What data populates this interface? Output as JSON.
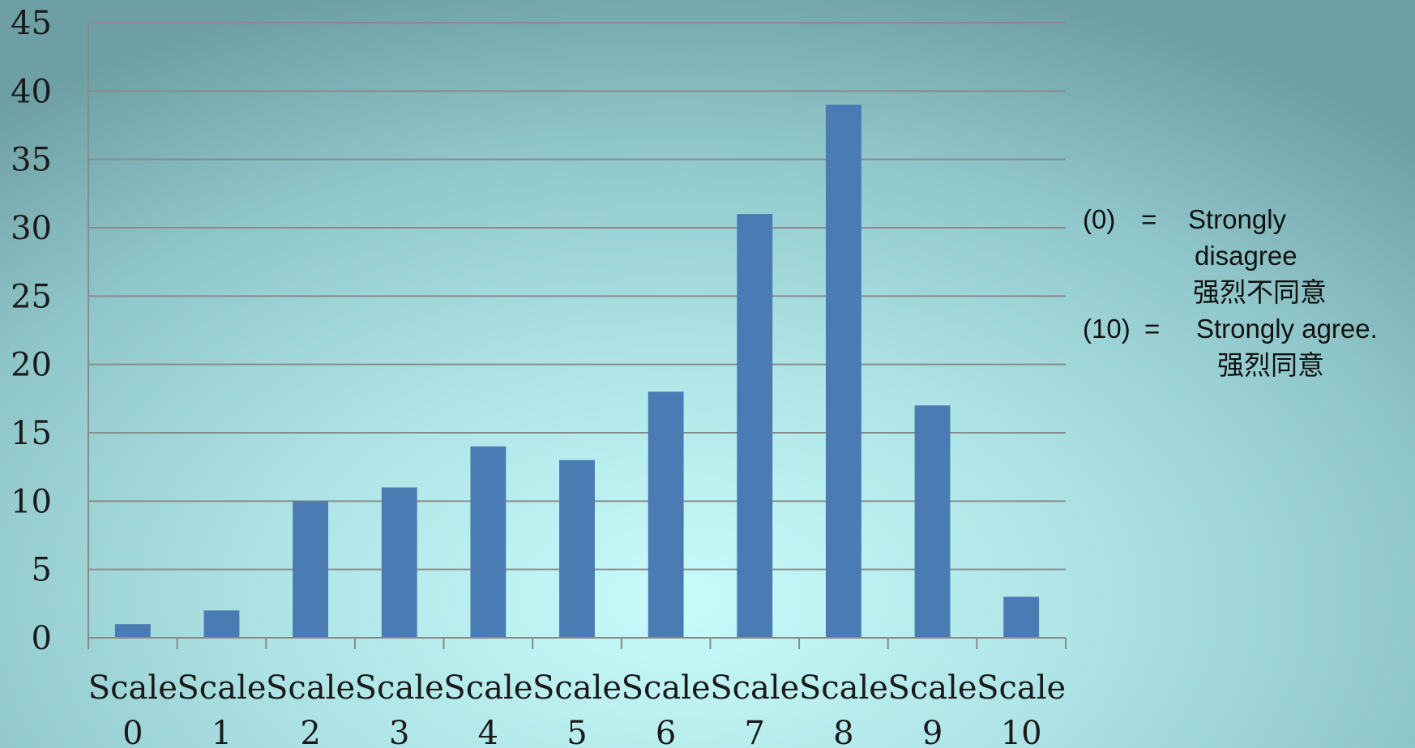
{
  "chart_data": {
    "type": "bar",
    "categories": [
      "Scale 0",
      "Scale 1",
      "Scale 2",
      "Scale 3",
      "Scale 4",
      "Scale 5",
      "Scale 6",
      "Scale 7",
      "Scale 8",
      "Scale 9",
      "Scale 10"
    ],
    "category_lines": [
      [
        "Scale",
        "0"
      ],
      [
        "Scale",
        "1"
      ],
      [
        "Scale",
        "2"
      ],
      [
        "Scale",
        "3"
      ],
      [
        "Scale",
        "4"
      ],
      [
        "Scale",
        "5"
      ],
      [
        "Scale",
        "6"
      ],
      [
        "Scale",
        "7"
      ],
      [
        "Scale",
        "8"
      ],
      [
        "Scale",
        "9"
      ],
      [
        "Scale",
        "10"
      ]
    ],
    "values": [
      1,
      2,
      10,
      11,
      14,
      13,
      18,
      31,
      39,
      17,
      3
    ],
    "ylim": [
      0,
      45
    ],
    "yticks": [
      "0",
      "5",
      "10",
      "15",
      "20",
      "25",
      "30",
      "35",
      "40",
      "45"
    ],
    "grid": true,
    "bar_color": "#4a7bb2",
    "grid_color": "#8a8a8a",
    "title": "",
    "xlabel": "",
    "ylabel": ""
  },
  "legend": {
    "low_key": "(0)",
    "low_eq": "=",
    "low_text_en_1": "Strongly",
    "low_text_en_2": "disagree",
    "low_text_zh": "强烈不同意",
    "high_key": "(10)",
    "high_eq": "=",
    "high_text_en": "Strongly agree.",
    "high_text_zh": "强烈同意"
  }
}
